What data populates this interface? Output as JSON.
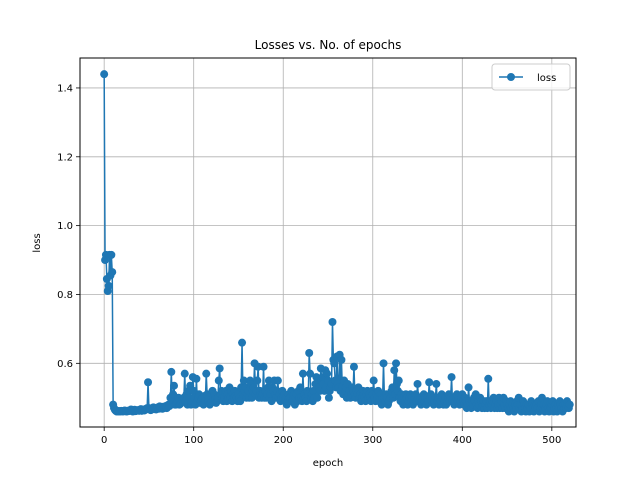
{
  "chart_data": {
    "type": "line",
    "title": "Losses vs. No. of epochs",
    "xlabel": "epoch",
    "ylabel": "loss",
    "xlim": [
      -27,
      527
    ],
    "ylim": [
      0.415,
      1.487
    ],
    "xticks": [
      0,
      100,
      200,
      300,
      400,
      500
    ],
    "yticks": [
      0.6,
      0.8,
      1.0,
      1.2,
      1.4
    ],
    "ytick_labels": [
      "0.6",
      "0.8",
      "1.0",
      "1.2",
      "1.4"
    ],
    "grid": true,
    "legend_position": "top-right",
    "series": [
      {
        "name": "loss",
        "color": "#1f77b4",
        "marker": "circle",
        "x_start": 0,
        "x_step": 1,
        "values": [
          1.44,
          0.9,
          0.915,
          0.845,
          0.81,
          0.825,
          0.915,
          0.855,
          0.915,
          0.865,
          0.48,
          0.47,
          0.465,
          0.462,
          0.46,
          0.462,
          0.46,
          0.461,
          0.46,
          0.462,
          0.461,
          0.46,
          0.462,
          0.463,
          0.461,
          0.46,
          0.462,
          0.461,
          0.463,
          0.462,
          0.466,
          0.462,
          0.46,
          0.463,
          0.465,
          0.461,
          0.462,
          0.464,
          0.463,
          0.462,
          0.465,
          0.467,
          0.462,
          0.464,
          0.466,
          0.463,
          0.465,
          0.468,
          0.47,
          0.545,
          0.47,
          0.466,
          0.464,
          0.468,
          0.47,
          0.472,
          0.467,
          0.469,
          0.466,
          0.47,
          0.472,
          0.468,
          0.475,
          0.47,
          0.472,
          0.468,
          0.474,
          0.47,
          0.473,
          0.476,
          0.47,
          0.478,
          0.48,
          0.476,
          0.5,
          0.575,
          0.49,
          0.51,
          0.535,
          0.48,
          0.48,
          0.485,
          0.49,
          0.5,
          0.48,
          0.482,
          0.488,
          0.495,
          0.49,
          0.5,
          0.57,
          0.49,
          0.51,
          0.48,
          0.52,
          0.5,
          0.535,
          0.48,
          0.49,
          0.56,
          0.52,
          0.5,
          0.48,
          0.555,
          0.49,
          0.5,
          0.51,
          0.485,
          0.49,
          0.495,
          0.5,
          0.48,
          0.505,
          0.49,
          0.57,
          0.51,
          0.49,
          0.5,
          0.48,
          0.485,
          0.49,
          0.52,
          0.5,
          0.51,
          0.495,
          0.485,
          0.49,
          0.5,
          0.55,
          0.585,
          0.51,
          0.52,
          0.5,
          0.49,
          0.5,
          0.515,
          0.52,
          0.49,
          0.51,
          0.5,
          0.53,
          0.5,
          0.52,
          0.49,
          0.51,
          0.5,
          0.52,
          0.505,
          0.5,
          0.49,
          0.51,
          0.5,
          0.49,
          0.53,
          0.66,
          0.51,
          0.55,
          0.52,
          0.53,
          0.5,
          0.51,
          0.52,
          0.5,
          0.55,
          0.54,
          0.5,
          0.52,
          0.53,
          0.6,
          0.51,
          0.52,
          0.55,
          0.59,
          0.5,
          0.52,
          0.51,
          0.5,
          0.51,
          0.59,
          0.5,
          0.52,
          0.5,
          0.51,
          0.53,
          0.55,
          0.5,
          0.51,
          0.49,
          0.53,
          0.52,
          0.55,
          0.51,
          0.5,
          0.52,
          0.55,
          0.5,
          0.51,
          0.49,
          0.5,
          0.52,
          0.5,
          0.51,
          0.49,
          0.5,
          0.48,
          0.49,
          0.51,
          0.5,
          0.5,
          0.52,
          0.49,
          0.5,
          0.51,
          0.48,
          0.5,
          0.51,
          0.49,
          0.52,
          0.5,
          0.53,
          0.5,
          0.49,
          0.57,
          0.5,
          0.51,
          0.5,
          0.49,
          0.52,
          0.51,
          0.63,
          0.57,
          0.5,
          0.51,
          0.49,
          0.52,
          0.5,
          0.54,
          0.56,
          0.5,
          0.55,
          0.53,
          0.52,
          0.585,
          0.55,
          0.56,
          0.54,
          0.52,
          0.58,
          0.53,
          0.57,
          0.55,
          0.5,
          0.52,
          0.53,
          0.54,
          0.72,
          0.61,
          0.6,
          0.55,
          0.53,
          0.62,
          0.54,
          0.53,
          0.625,
          0.52,
          0.61,
          0.53,
          0.51,
          0.55,
          0.52,
          0.53,
          0.5,
          0.54,
          0.51,
          0.52,
          0.5,
          0.51,
          0.53,
          0.52,
          0.59,
          0.51,
          0.5,
          0.52,
          0.51,
          0.53,
          0.5,
          0.51,
          0.49,
          0.5,
          0.52,
          0.51,
          0.5,
          0.49,
          0.51,
          0.52,
          0.5,
          0.51,
          0.5,
          0.49,
          0.52,
          0.51,
          0.55,
          0.5,
          0.49,
          0.51,
          0.5,
          0.52,
          0.49,
          0.5,
          0.51,
          0.48,
          0.5,
          0.6,
          0.5,
          0.49,
          0.51,
          0.5,
          0.48,
          0.49,
          0.51,
          0.5,
          0.52,
          0.53,
          0.5,
          0.58,
          0.51,
          0.6,
          0.54,
          0.52,
          0.55,
          0.5,
          0.49,
          0.51,
          0.5,
          0.48,
          0.5,
          0.49,
          0.51,
          0.5,
          0.48,
          0.49,
          0.5,
          0.51,
          0.49,
          0.5,
          0.48,
          0.49,
          0.5,
          0.51,
          0.49,
          0.54,
          0.5,
          0.49,
          0.5,
          0.48,
          0.49,
          0.5,
          0.51,
          0.49,
          0.5,
          0.48,
          0.5,
          0.49,
          0.545,
          0.5,
          0.51,
          0.49,
          0.5,
          0.48,
          0.49,
          0.5,
          0.54,
          0.49,
          0.5,
          0.48,
          0.5,
          0.49,
          0.51,
          0.5,
          0.48,
          0.49,
          0.5,
          0.48,
          0.49,
          0.5,
          0.51,
          0.49,
          0.5,
          0.56,
          0.49,
          0.5,
          0.48,
          0.49,
          0.5,
          0.51,
          0.49,
          0.5,
          0.48,
          0.49,
          0.5,
          0.51,
          0.49,
          0.48,
          0.5,
          0.49,
          0.47,
          0.48,
          0.53,
          0.49,
          0.48,
          0.47,
          0.49,
          0.48,
          0.5,
          0.49,
          0.51,
          0.48,
          0.47,
          0.49,
          0.48,
          0.5,
          0.49,
          0.47,
          0.48,
          0.49,
          0.47,
          0.48,
          0.49,
          0.47,
          0.555,
          0.48,
          0.49,
          0.47,
          0.48,
          0.49,
          0.5,
          0.47,
          0.48,
          0.49,
          0.47,
          0.48,
          0.5,
          0.47,
          0.48,
          0.49,
          0.47,
          0.5,
          0.48,
          0.47,
          0.49,
          0.48,
          0.47,
          0.46,
          0.48,
          0.49,
          0.47,
          0.48,
          0.47,
          0.46,
          0.48,
          0.47,
          0.49,
          0.48,
          0.5,
          0.47,
          0.48,
          0.46,
          0.47,
          0.49,
          0.48,
          0.47,
          0.46,
          0.48,
          0.47,
          0.48,
          0.46,
          0.47,
          0.49,
          0.48,
          0.47,
          0.46,
          0.48,
          0.47,
          0.48,
          0.47,
          0.49,
          0.46,
          0.47,
          0.48,
          0.5,
          0.47,
          0.48,
          0.46,
          0.47,
          0.48,
          0.49,
          0.47,
          0.46,
          0.48,
          0.47,
          0.48,
          0.49,
          0.46,
          0.47,
          0.48,
          0.47,
          0.46,
          0.48,
          0.47,
          0.49,
          0.48,
          0.47,
          0.46,
          0.48,
          0.47,
          0.48,
          0.47,
          0.49,
          0.48,
          0.47,
          0.48
        ]
      }
    ]
  }
}
